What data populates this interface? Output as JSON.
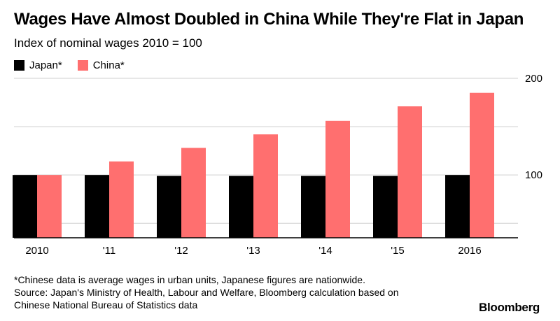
{
  "title": "Wages Have Almost Doubled in China While They're Flat in Japan",
  "subtitle": "Index of nominal wages 2010 = 100",
  "footnote": {
    "line1": "*Chinese data is average wages in urban units, Japanese figures are nationwide.",
    "line2": "Source: Japan's Ministry of Health, Labour and Welfare, Bloomberg calculation based on",
    "line3": "Chinese National Bureau of Statistics data"
  },
  "brand": "Bloomberg",
  "colors": {
    "japan": "#000000",
    "china": "#ff6f6f",
    "grid": "#cfcfcf",
    "axis": "#000000"
  },
  "chart_data": {
    "type": "bar",
    "categories": [
      "2010",
      "'11",
      "'12",
      "'13",
      "'14",
      "'15",
      "2016"
    ],
    "series": [
      {
        "name": "Japan*",
        "values": [
          100,
          100,
          99,
          99,
          99,
          99,
          100
        ]
      },
      {
        "name": "China*",
        "values": [
          100,
          114,
          128,
          142,
          156,
          171,
          185
        ]
      }
    ],
    "ylim": [
      35,
      200
    ],
    "yticks": [
      100,
      200
    ],
    "gridlines": [
      50,
      100,
      150,
      200
    ],
    "grid": true,
    "y_axis_side": "right",
    "legend_position": "top-left",
    "title": "Wages Have Almost Doubled in China While They're Flat in Japan",
    "xlabel": "",
    "ylabel": ""
  }
}
